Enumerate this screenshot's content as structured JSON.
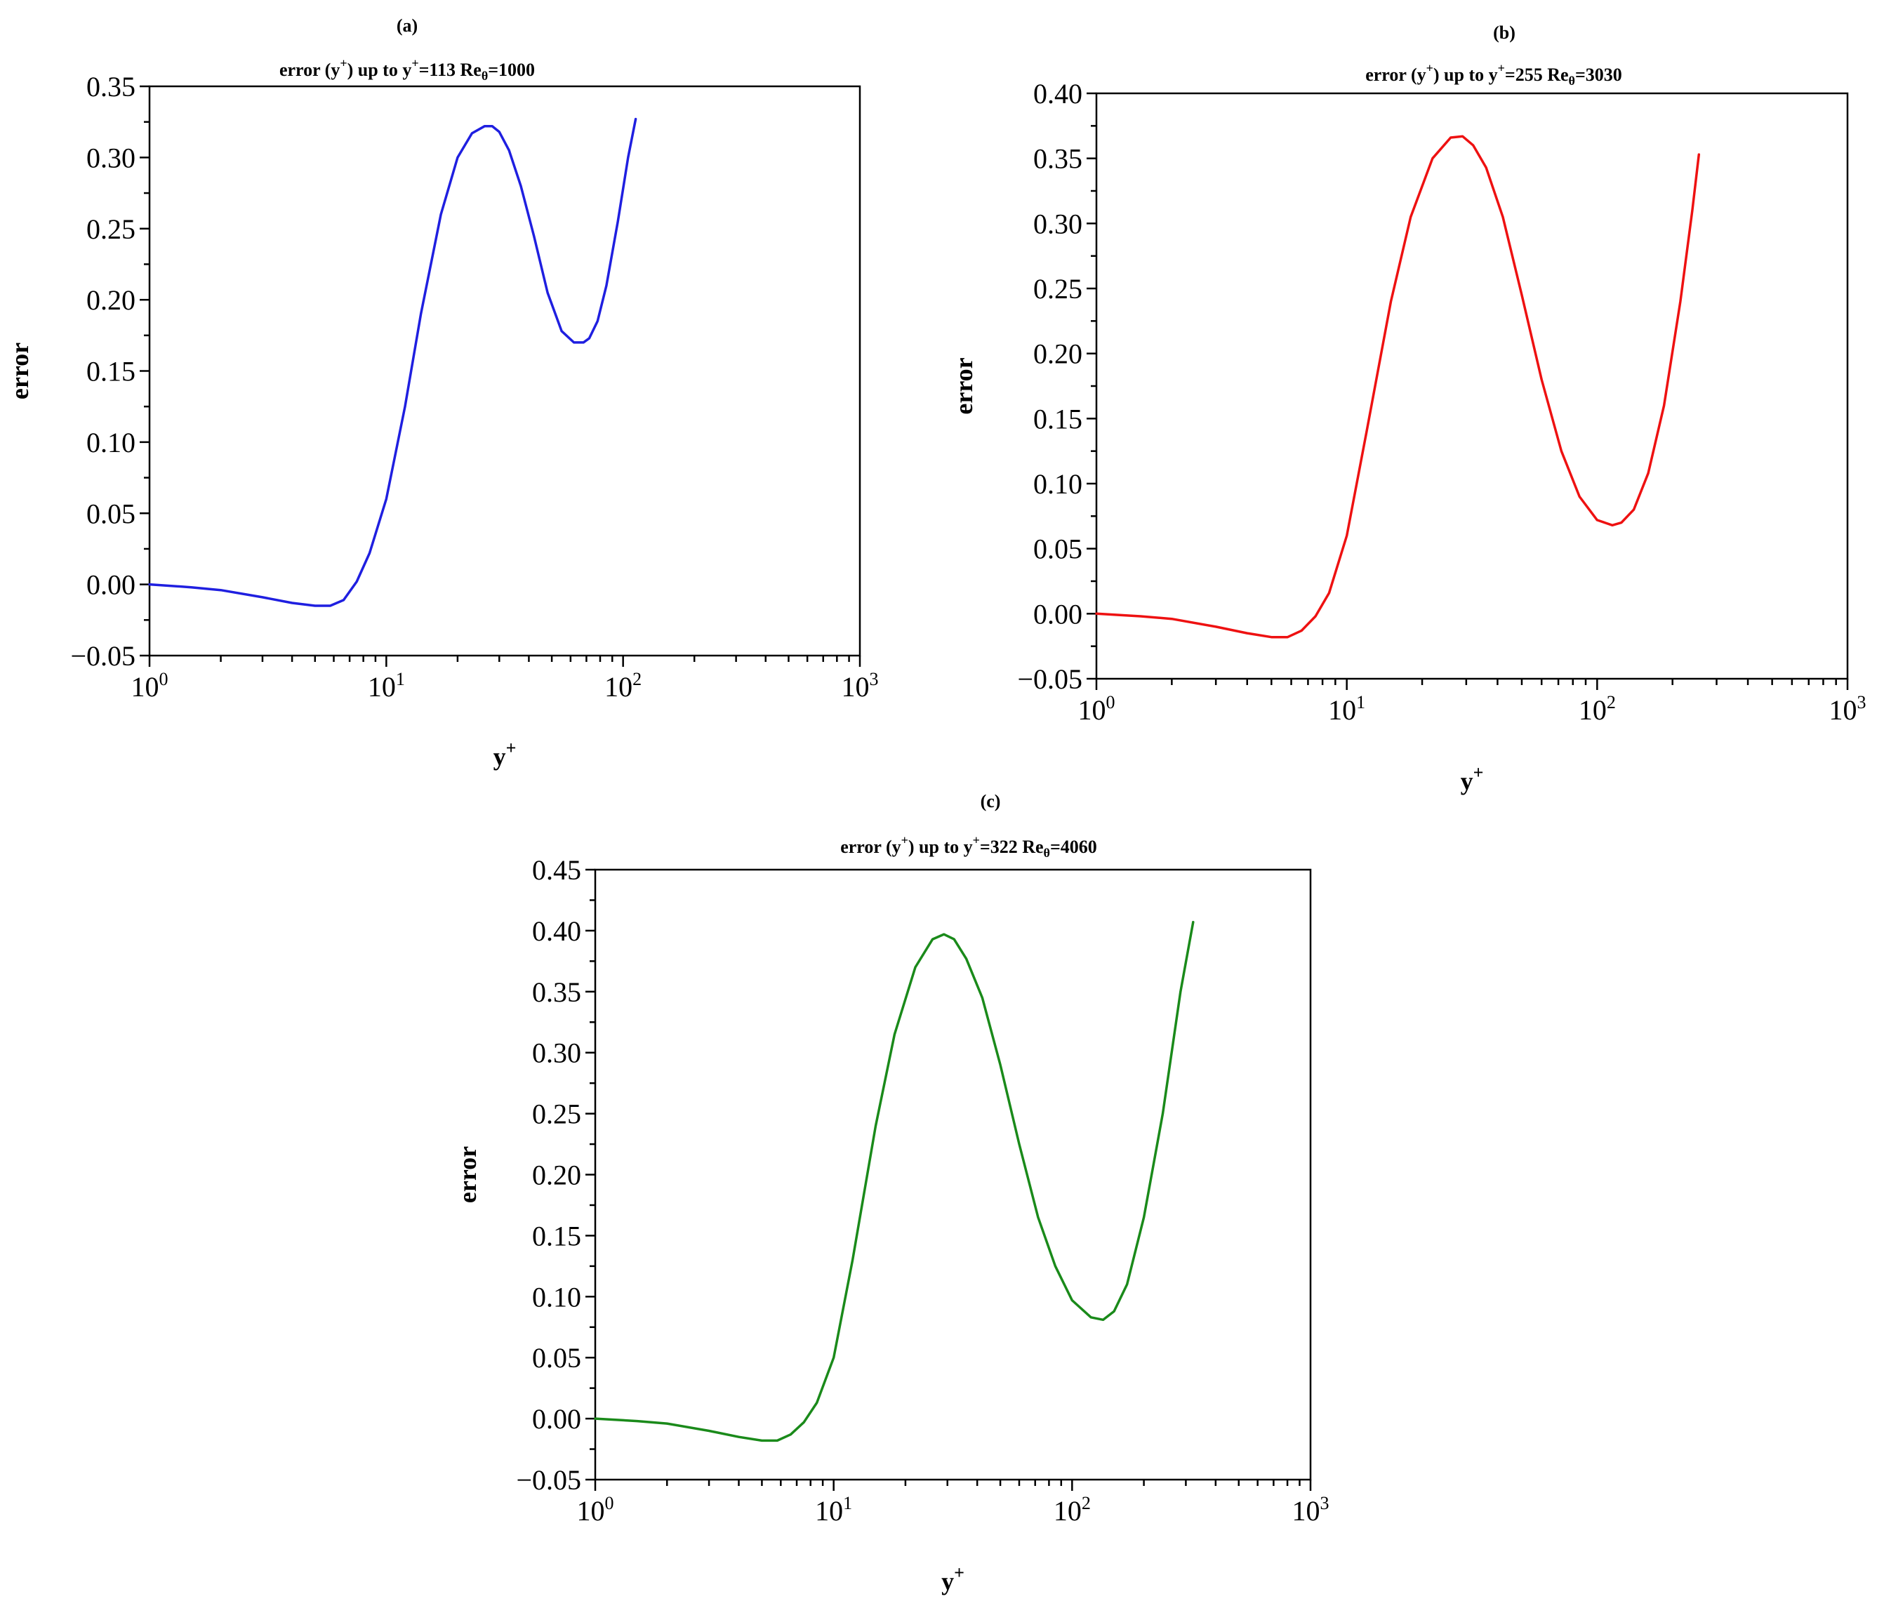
{
  "figure": {
    "panels": [
      {
        "id": "a",
        "letter": "(a)",
        "title_main": "error (y",
        "title_sup": "+",
        "title_mid": ") up to y",
        "title_sup2": "+",
        "title_end": "=113 Re",
        "title_sub": "θ",
        "title_tail": "=1000"
      },
      {
        "id": "b",
        "letter": "(b)",
        "title_main": "error (y",
        "title_sup": "+",
        "title_mid": ") up to y",
        "title_sup2": "+",
        "title_end": "=255 Re",
        "title_sub": "θ",
        "title_tail": "=3030"
      },
      {
        "id": "c",
        "letter": "(c)",
        "title_main": "error (y",
        "title_sup": "+",
        "title_mid": ") up to y",
        "title_sup2": "+",
        "title_end": "=322 Re",
        "title_sub": "θ",
        "title_tail": "=4060"
      }
    ]
  },
  "chart_data": [
    {
      "type": "line",
      "panel": "(a)",
      "title": "error (y+) up to y+=113 Reθ=1000",
      "xlabel": "y+",
      "ylabel": "error",
      "xscale": "log",
      "xlim": [
        1,
        1000
      ],
      "ylim": [
        -0.05,
        0.35
      ],
      "yticks": [
        "−0.05",
        "0.00",
        "0.05",
        "0.10",
        "0.15",
        "0.20",
        "0.25",
        "0.30",
        "0.35"
      ],
      "xticks": [
        {
          "base": "10",
          "exp": "0"
        },
        {
          "base": "10",
          "exp": "1"
        },
        {
          "base": "10",
          "exp": "2"
        },
        {
          "base": "10",
          "exp": "3"
        }
      ],
      "color": "#1f1fe0",
      "series": [
        {
          "name": "error",
          "x": [
            1,
            1.5,
            2,
            3,
            4,
            5,
            5.8,
            6.6,
            7.5,
            8.5,
            10,
            12,
            14,
            17,
            20,
            23,
            26,
            28,
            30,
            33,
            37,
            42,
            48,
            55,
            62,
            68,
            72,
            78,
            85,
            95,
            105,
            113
          ],
          "y": [
            0.0,
            -0.002,
            -0.004,
            -0.009,
            -0.013,
            -0.015,
            -0.015,
            -0.011,
            0.002,
            0.022,
            0.06,
            0.125,
            0.19,
            0.26,
            0.3,
            0.317,
            0.322,
            0.322,
            0.318,
            0.305,
            0.28,
            0.245,
            0.205,
            0.178,
            0.17,
            0.17,
            0.173,
            0.185,
            0.21,
            0.255,
            0.3,
            0.327
          ]
        }
      ]
    },
    {
      "type": "line",
      "panel": "(b)",
      "title": "error (y+) up to y+=255 Reθ=3030",
      "xlabel": "y+",
      "ylabel": "error",
      "xscale": "log",
      "xlim": [
        1,
        1000
      ],
      "ylim": [
        -0.05,
        0.4
      ],
      "yticks": [
        "−0.05",
        "0.00",
        "0.05",
        "0.10",
        "0.15",
        "0.20",
        "0.25",
        "0.30",
        "0.35",
        "0.40"
      ],
      "xticks": [
        {
          "base": "10",
          "exp": "0"
        },
        {
          "base": "10",
          "exp": "1"
        },
        {
          "base": "10",
          "exp": "2"
        },
        {
          "base": "10",
          "exp": "3"
        }
      ],
      "color": "#ee1111",
      "series": [
        {
          "name": "error",
          "x": [
            1,
            1.5,
            2,
            3,
            4,
            5,
            5.8,
            6.6,
            7.5,
            8.5,
            10,
            12,
            15,
            18,
            22,
            26,
            29,
            32,
            36,
            42,
            50,
            60,
            72,
            85,
            100,
            115,
            125,
            140,
            160,
            185,
            215,
            240,
            255
          ],
          "y": [
            0.0,
            -0.002,
            -0.004,
            -0.01,
            -0.015,
            -0.018,
            -0.018,
            -0.013,
            -0.002,
            0.016,
            0.06,
            0.14,
            0.24,
            0.305,
            0.35,
            0.366,
            0.367,
            0.36,
            0.343,
            0.305,
            0.245,
            0.18,
            0.125,
            0.09,
            0.072,
            0.068,
            0.07,
            0.08,
            0.108,
            0.16,
            0.24,
            0.31,
            0.353
          ]
        }
      ]
    },
    {
      "type": "line",
      "panel": "(c)",
      "title": "error (y+) up to y+=322 Reθ=4060",
      "xlabel": "y+",
      "ylabel": "error",
      "xscale": "log",
      "xlim": [
        1,
        1000
      ],
      "ylim": [
        -0.05,
        0.45
      ],
      "yticks": [
        "−0.05",
        "0.00",
        "0.05",
        "0.10",
        "0.15",
        "0.20",
        "0.25",
        "0.30",
        "0.35",
        "0.40",
        "0.45"
      ],
      "xticks": [
        {
          "base": "10",
          "exp": "0"
        },
        {
          "base": "10",
          "exp": "1"
        },
        {
          "base": "10",
          "exp": "2"
        },
        {
          "base": "10",
          "exp": "3"
        }
      ],
      "color": "#1a8a1a",
      "series": [
        {
          "name": "error",
          "x": [
            1,
            1.5,
            2,
            3,
            4,
            5,
            5.8,
            6.6,
            7.5,
            8.5,
            10,
            12,
            15,
            18,
            22,
            26,
            29,
            32,
            36,
            42,
            50,
            60,
            72,
            85,
            100,
            120,
            135,
            150,
            170,
            200,
            240,
            285,
            322
          ],
          "y": [
            0.0,
            -0.002,
            -0.004,
            -0.01,
            -0.015,
            -0.018,
            -0.018,
            -0.013,
            -0.003,
            0.013,
            0.05,
            0.13,
            0.24,
            0.315,
            0.37,
            0.393,
            0.397,
            0.393,
            0.377,
            0.345,
            0.29,
            0.225,
            0.165,
            0.125,
            0.097,
            0.083,
            0.081,
            0.088,
            0.11,
            0.165,
            0.25,
            0.35,
            0.407
          ]
        }
      ]
    }
  ]
}
